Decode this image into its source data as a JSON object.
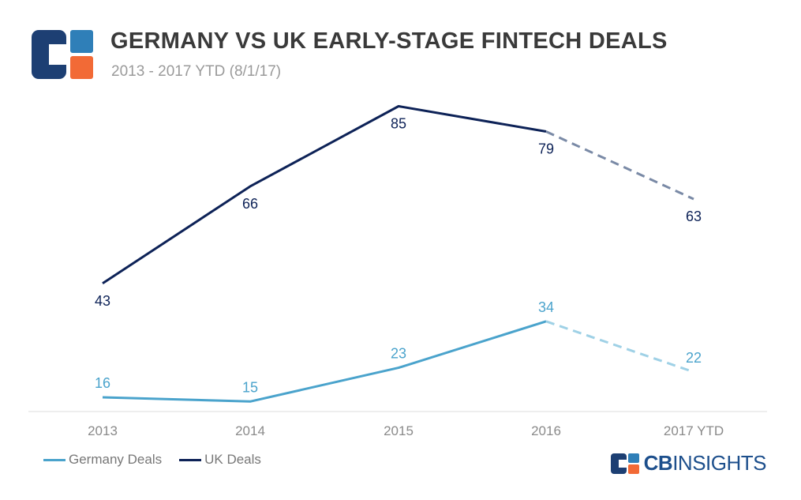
{
  "header": {
    "title": "GERMANY VS UK EARLY-STAGE FINTECH DEALS",
    "subtitle": "2013 - 2017 YTD (8/1/17)"
  },
  "brand": {
    "name_bold": "CB",
    "name_light": "INSIGHTS",
    "icon": "cb-insights-logo-icon"
  },
  "colors": {
    "uk": "#0d2257",
    "germany": "#4aa3cc",
    "uk_dashed": "#7a8aa6",
    "germany_dashed": "#9fd1e6",
    "logo_navy": "#1d3f73",
    "logo_blue": "#2f7fb8",
    "logo_orange": "#f26a36"
  },
  "chart_data": {
    "type": "line",
    "title": "GERMANY VS UK EARLY-STAGE FINTECH DEALS",
    "subtitle": "2013 - 2017 YTD (8/1/17)",
    "categories": [
      "2013",
      "2014",
      "2015",
      "2016",
      "2017 YTD"
    ],
    "series": [
      {
        "name": "Germany Deals",
        "values": [
          16,
          15,
          23,
          34,
          22
        ],
        "dashed_last_segment": true
      },
      {
        "name": "UK Deals",
        "values": [
          43,
          66,
          85,
          79,
          63
        ],
        "dashed_last_segment": true
      }
    ],
    "xlabel": "",
    "ylabel": "",
    "ylim": [
      0,
      90
    ],
    "grid": false,
    "legend": "bottom-left",
    "data_labels": true
  }
}
